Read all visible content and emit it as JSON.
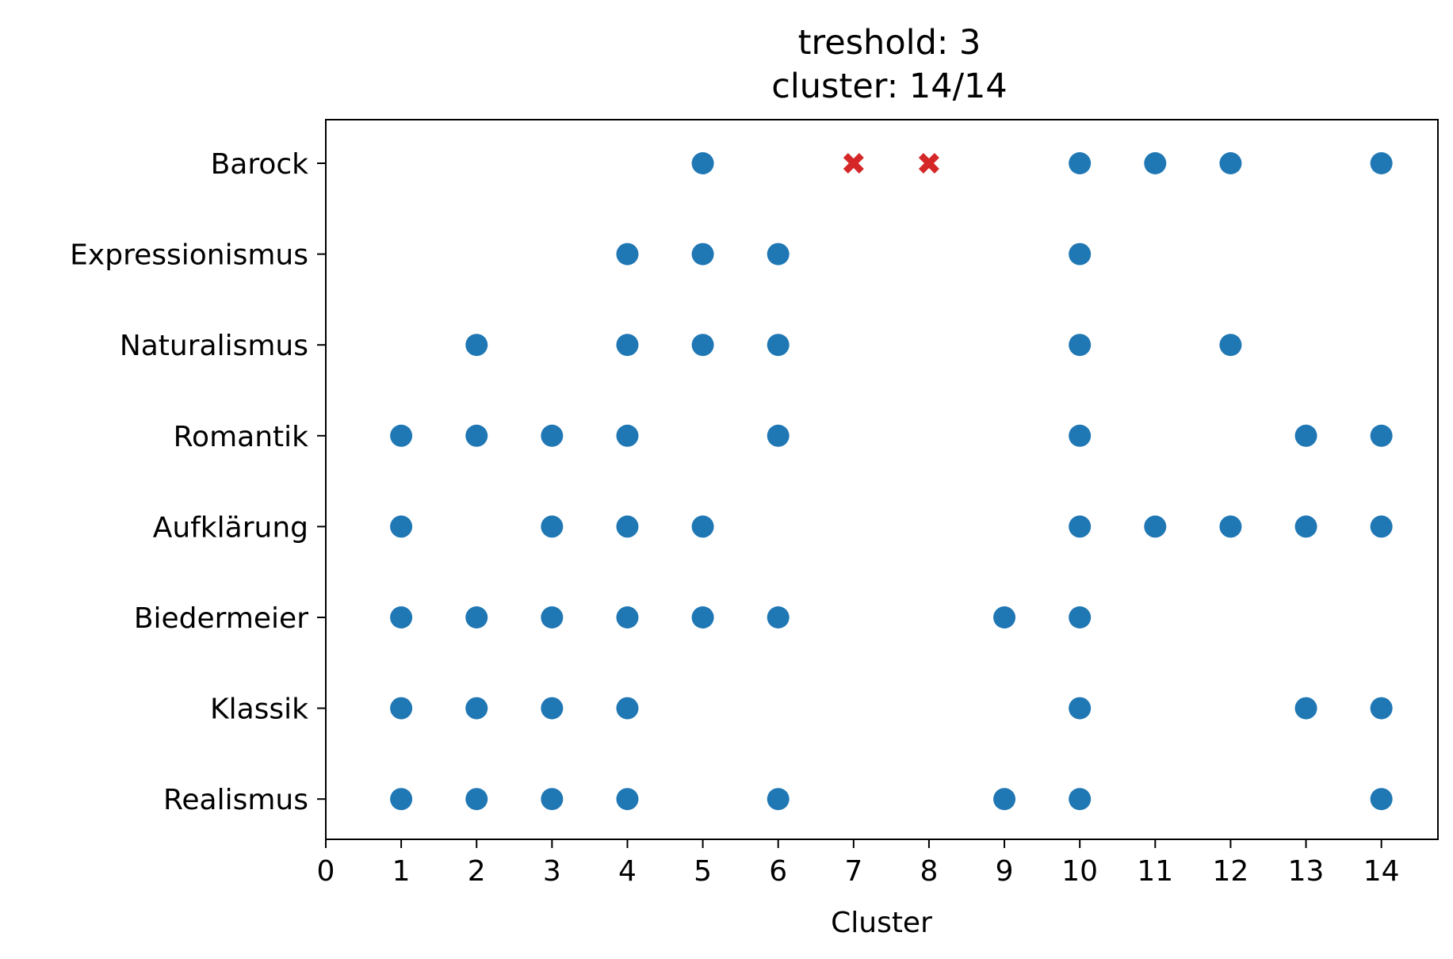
{
  "chart_data": {
    "type": "scatter",
    "title": "treshold: 3",
    "subtitle": "cluster: 14/14",
    "xlabel": "Cluster",
    "ylabel": "",
    "xlim": [
      0,
      14.75
    ],
    "x_ticks": [
      0,
      1,
      2,
      3,
      4,
      5,
      6,
      7,
      8,
      9,
      10,
      11,
      12,
      13,
      14
    ],
    "categories": [
      "Barock",
      "Expressionismus",
      "Naturalismus",
      "Romantik",
      "Aufklärung",
      "Biedermeier",
      "Klassik",
      "Realismus"
    ],
    "grid": false,
    "legend": "none",
    "series": [
      {
        "marker": "circle",
        "color": "#1f77b4",
        "points": [
          {
            "x": 5,
            "y": "Barock"
          },
          {
            "x": 10,
            "y": "Barock"
          },
          {
            "x": 11,
            "y": "Barock"
          },
          {
            "x": 12,
            "y": "Barock"
          },
          {
            "x": 14,
            "y": "Barock"
          },
          {
            "x": 4,
            "y": "Expressionismus"
          },
          {
            "x": 5,
            "y": "Expressionismus"
          },
          {
            "x": 6,
            "y": "Expressionismus"
          },
          {
            "x": 10,
            "y": "Expressionismus"
          },
          {
            "x": 2,
            "y": "Naturalismus"
          },
          {
            "x": 4,
            "y": "Naturalismus"
          },
          {
            "x": 5,
            "y": "Naturalismus"
          },
          {
            "x": 6,
            "y": "Naturalismus"
          },
          {
            "x": 10,
            "y": "Naturalismus"
          },
          {
            "x": 12,
            "y": "Naturalismus"
          },
          {
            "x": 1,
            "y": "Romantik"
          },
          {
            "x": 2,
            "y": "Romantik"
          },
          {
            "x": 3,
            "y": "Romantik"
          },
          {
            "x": 4,
            "y": "Romantik"
          },
          {
            "x": 6,
            "y": "Romantik"
          },
          {
            "x": 10,
            "y": "Romantik"
          },
          {
            "x": 13,
            "y": "Romantik"
          },
          {
            "x": 14,
            "y": "Romantik"
          },
          {
            "x": 1,
            "y": "Aufklärung"
          },
          {
            "x": 3,
            "y": "Aufklärung"
          },
          {
            "x": 4,
            "y": "Aufklärung"
          },
          {
            "x": 5,
            "y": "Aufklärung"
          },
          {
            "x": 10,
            "y": "Aufklärung"
          },
          {
            "x": 11,
            "y": "Aufklärung"
          },
          {
            "x": 12,
            "y": "Aufklärung"
          },
          {
            "x": 13,
            "y": "Aufklärung"
          },
          {
            "x": 14,
            "y": "Aufklärung"
          },
          {
            "x": 1,
            "y": "Biedermeier"
          },
          {
            "x": 2,
            "y": "Biedermeier"
          },
          {
            "x": 3,
            "y": "Biedermeier"
          },
          {
            "x": 4,
            "y": "Biedermeier"
          },
          {
            "x": 5,
            "y": "Biedermeier"
          },
          {
            "x": 6,
            "y": "Biedermeier"
          },
          {
            "x": 9,
            "y": "Biedermeier"
          },
          {
            "x": 10,
            "y": "Biedermeier"
          },
          {
            "x": 1,
            "y": "Klassik"
          },
          {
            "x": 2,
            "y": "Klassik"
          },
          {
            "x": 3,
            "y": "Klassik"
          },
          {
            "x": 4,
            "y": "Klassik"
          },
          {
            "x": 10,
            "y": "Klassik"
          },
          {
            "x": 13,
            "y": "Klassik"
          },
          {
            "x": 14,
            "y": "Klassik"
          },
          {
            "x": 1,
            "y": "Realismus"
          },
          {
            "x": 2,
            "y": "Realismus"
          },
          {
            "x": 3,
            "y": "Realismus"
          },
          {
            "x": 4,
            "y": "Realismus"
          },
          {
            "x": 6,
            "y": "Realismus"
          },
          {
            "x": 9,
            "y": "Realismus"
          },
          {
            "x": 10,
            "y": "Realismus"
          },
          {
            "x": 14,
            "y": "Realismus"
          }
        ]
      },
      {
        "marker": "x-filled",
        "color": "#d62728",
        "points": [
          {
            "x": 7,
            "y": "Barock"
          },
          {
            "x": 8,
            "y": "Barock"
          }
        ]
      }
    ]
  }
}
